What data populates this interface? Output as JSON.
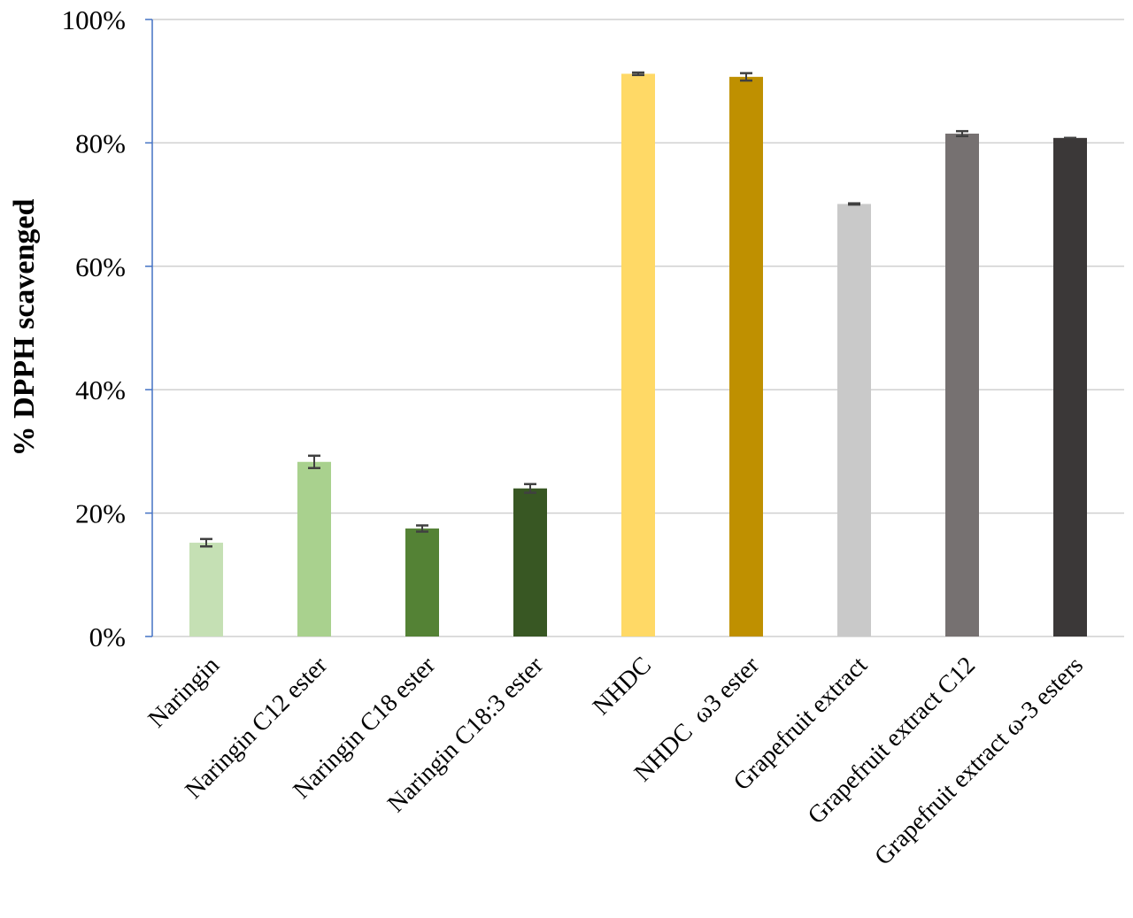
{
  "chart_data": {
    "type": "bar",
    "ylabel": "% DPPH scavenged",
    "xlabel": "",
    "title": "",
    "ylim": [
      0,
      100
    ],
    "y_ticks": [
      "0%",
      "20%",
      "40%",
      "60%",
      "80%",
      "100%"
    ],
    "y_tick_values": [
      0,
      20,
      40,
      60,
      80,
      100
    ],
    "grid": true,
    "categories": [
      "Naringin",
      "Naringin C12 ester",
      "Naringin C18 ester",
      "Naringin C18:3 ester",
      "NHDC",
      "NHDC  ω3 ester",
      "Grapefruit extract",
      "Grapefruit extract C12",
      "Grapefruit extract ω-3 esters"
    ],
    "values": [
      15.2,
      28.3,
      17.5,
      24.0,
      91.2,
      90.7,
      70.1,
      81.5,
      80.8
    ],
    "errors": [
      0.6,
      1.0,
      0.5,
      0.7,
      0.2,
      0.6,
      0.1,
      0.4,
      0.0
    ],
    "colors": [
      "#c5e0b4",
      "#a9d18e",
      "#548235",
      "#385723",
      "#ffd966",
      "#bf9000",
      "#c9c9c9",
      "#767171",
      "#3b3838"
    ]
  }
}
